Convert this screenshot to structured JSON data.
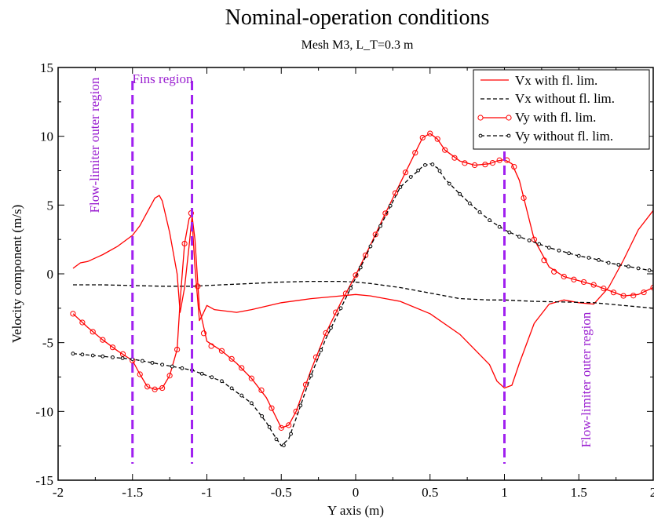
{
  "chart_data": {
    "type": "line",
    "title": "Nominal-operation conditions",
    "subtitle": "Mesh M3, L_T=0.3 m",
    "xlabel": "Y axis (m)",
    "ylabel": "Velocity component  (m/s)",
    "xlim": [
      -2,
      2
    ],
    "ylim": [
      -15,
      15
    ],
    "xticks": [
      "-2",
      "-1.5",
      "-1",
      "-0.5",
      "0",
      "0.5",
      "1",
      "1.5",
      "2"
    ],
    "yticks": [
      "-15",
      "-10",
      "-5",
      "0",
      "5",
      "10",
      "15"
    ],
    "grid": false,
    "legend_position": "top-right",
    "colors": {
      "red": "#ff0000",
      "black": "#000000",
      "purple": "#a020f0"
    },
    "series": [
      {
        "name": "Vx with fl. lim.",
        "color": "#ff0000",
        "dash": "solid",
        "marker": "none",
        "x": [
          -1.9,
          -1.85,
          -1.8,
          -1.7,
          -1.6,
          -1.5,
          -1.45,
          -1.4,
          -1.35,
          -1.32,
          -1.3,
          -1.25,
          -1.2,
          -1.18,
          -1.15,
          -1.12,
          -1.1,
          -1.08,
          -1.05,
          -1.03,
          -1.0,
          -0.95,
          -0.8,
          -0.7,
          -0.5,
          -0.3,
          -0.1,
          0.0,
          0.1,
          0.3,
          0.5,
          0.7,
          0.9,
          0.95,
          1.0,
          1.05,
          1.1,
          1.2,
          1.3,
          1.4,
          1.5,
          1.6,
          1.7,
          1.8,
          1.9,
          2.0
        ],
        "y": [
          0.4,
          0.8,
          0.9,
          1.4,
          2.0,
          2.8,
          3.5,
          4.5,
          5.5,
          5.7,
          5.3,
          3.0,
          0.0,
          -2.8,
          -1.0,
          2.0,
          4.1,
          0.5,
          -3.4,
          -3.0,
          -2.3,
          -2.6,
          -2.8,
          -2.6,
          -2.1,
          -1.8,
          -1.6,
          -1.5,
          -1.6,
          -2.0,
          -2.9,
          -4.4,
          -6.6,
          -7.8,
          -8.3,
          -8.1,
          -6.5,
          -3.6,
          -2.2,
          -1.9,
          -2.1,
          -2.2,
          -1.0,
          1.0,
          3.2,
          4.6
        ]
      },
      {
        "name": "Vx without fl. lim.",
        "color": "#000000",
        "dash": "dashed",
        "marker": "none",
        "x": [
          -1.9,
          -1.7,
          -1.5,
          -1.3,
          -1.1,
          -0.9,
          -0.7,
          -0.5,
          -0.3,
          -0.1,
          0.0,
          0.1,
          0.3,
          0.5,
          0.7,
          0.9,
          1.0,
          1.2,
          1.4,
          1.6,
          1.8,
          2.0
        ],
        "y": [
          -0.8,
          -0.8,
          -0.85,
          -0.9,
          -0.9,
          -0.8,
          -0.7,
          -0.6,
          -0.55,
          -0.55,
          -0.6,
          -0.7,
          -1.0,
          -1.4,
          -1.8,
          -1.9,
          -1.9,
          -2.0,
          -2.05,
          -2.1,
          -2.3,
          -2.5
        ]
      },
      {
        "name": "Vy with fl. lim.",
        "color": "#ff0000",
        "dash": "solid",
        "marker": "open-circle",
        "x": [
          -1.9,
          -1.8,
          -1.7,
          -1.6,
          -1.5,
          -1.45,
          -1.4,
          -1.35,
          -1.3,
          -1.25,
          -1.2,
          -1.18,
          -1.15,
          -1.12,
          -1.1,
          -1.08,
          -1.05,
          -1.0,
          -0.9,
          -0.8,
          -0.7,
          -0.6,
          -0.5,
          -0.45,
          -0.4,
          -0.3,
          -0.2,
          -0.1,
          0.0,
          0.1,
          0.2,
          0.3,
          0.4,
          0.45,
          0.5,
          0.55,
          0.6,
          0.7,
          0.8,
          0.9,
          0.95,
          1.0,
          1.05,
          1.1,
          1.2,
          1.3,
          1.4,
          1.5,
          1.6,
          1.7,
          1.8,
          1.9,
          2.0
        ],
        "y": [
          -2.9,
          -3.9,
          -4.8,
          -5.6,
          -6.3,
          -7.3,
          -8.2,
          -8.4,
          -8.3,
          -7.4,
          -5.5,
          -2.0,
          2.2,
          4.0,
          4.3,
          2.5,
          -2.5,
          -4.9,
          -5.6,
          -6.5,
          -7.6,
          -9.0,
          -11.2,
          -11.0,
          -10.0,
          -7.0,
          -4.3,
          -2.1,
          -0.1,
          2.1,
          4.4,
          6.6,
          8.8,
          9.9,
          10.2,
          9.8,
          9.0,
          8.2,
          7.9,
          8.0,
          8.2,
          8.3,
          8.0,
          6.8,
          2.5,
          0.5,
          -0.2,
          -0.5,
          -0.8,
          -1.2,
          -1.6,
          -1.5,
          -1.0
        ]
      },
      {
        "name": "Vy without fl. lim.",
        "color": "#000000",
        "dash": "dashed",
        "marker": "small-circle",
        "x": [
          -1.9,
          -1.8,
          -1.7,
          -1.6,
          -1.5,
          -1.4,
          -1.3,
          -1.2,
          -1.1,
          -1.0,
          -0.9,
          -0.8,
          -0.7,
          -0.6,
          -0.55,
          -0.5,
          -0.45,
          -0.4,
          -0.3,
          -0.2,
          -0.1,
          0.0,
          0.1,
          0.2,
          0.3,
          0.4,
          0.45,
          0.5,
          0.55,
          0.6,
          0.7,
          0.8,
          0.9,
          1.0,
          1.1,
          1.2,
          1.3,
          1.4,
          1.5,
          1.6,
          1.7,
          1.8,
          1.9,
          2.0
        ],
        "y": [
          -5.8,
          -5.9,
          -6.0,
          -6.1,
          -6.2,
          -6.4,
          -6.6,
          -6.8,
          -7.0,
          -7.4,
          -7.8,
          -8.6,
          -9.4,
          -10.8,
          -11.7,
          -12.5,
          -12.0,
          -10.5,
          -7.4,
          -4.7,
          -2.5,
          -0.3,
          2.0,
          4.2,
          6.3,
          7.3,
          7.8,
          8.0,
          7.7,
          6.9,
          5.8,
          4.8,
          3.9,
          3.2,
          2.7,
          2.3,
          1.9,
          1.6,
          1.3,
          1.1,
          0.8,
          0.6,
          0.4,
          0.2
        ]
      }
    ],
    "vlines": [
      -1.5,
      -1.1,
      1.0
    ],
    "annotations": {
      "fins_region": "Fins region",
      "flow_limiter_left": "Flow-limiter outer region",
      "flow_limiter_right": "Flow-limiter outer region"
    }
  }
}
